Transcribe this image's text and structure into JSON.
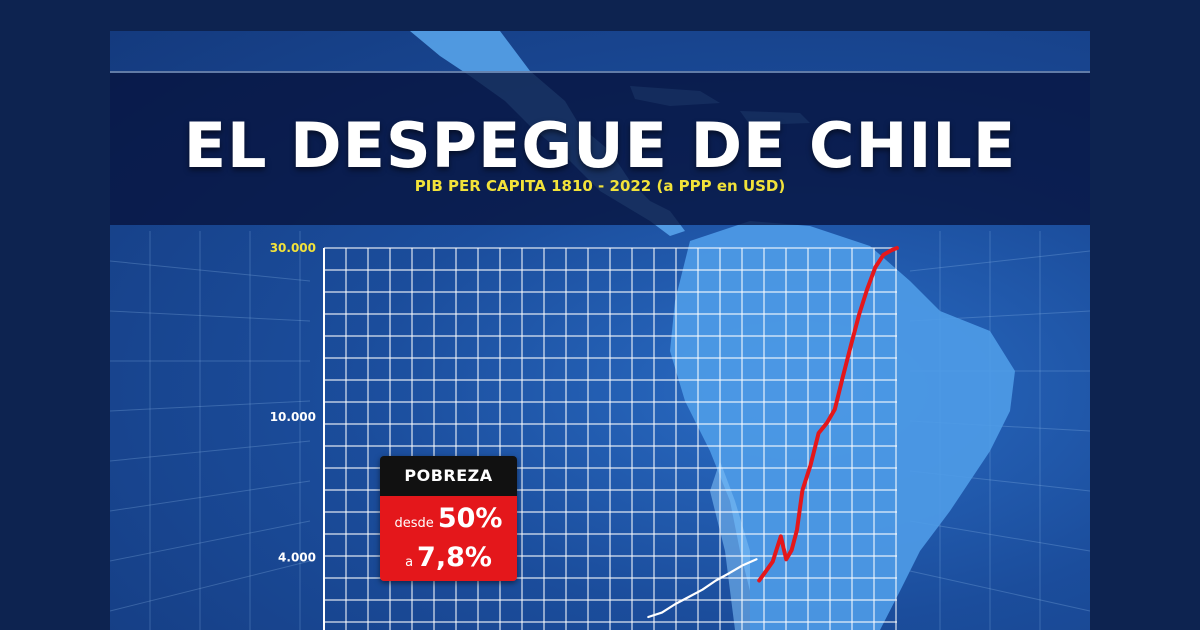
{
  "header": {
    "title": "EL DESPEGUE DE CHILE",
    "subtitle": "PIB  PER CAPITA 1810 - 2022 (a PPP en USD)"
  },
  "poverty_box": {
    "title": "POBREZA",
    "from_prefix": "desde",
    "from_value": "50%",
    "to_prefix": "a",
    "to_value": "7,8%"
  },
  "colors": {
    "page_bg": "#0d2350",
    "title_text": "#ffffff",
    "subtitle_text": "#f2e23a",
    "top_tick_text": "#f2e23a",
    "tick_text": "#ffffff",
    "line_red": "#e4171b",
    "line_white": "#ffffff",
    "grid": "#ffffff",
    "poverty_head": "#111111",
    "poverty_body": "#e4171b"
  },
  "chart_data": {
    "type": "line",
    "title": "EL DESPEGUE DE CHILE",
    "subtitle": "PIB  PER CAPITA 1810 - 2022 (a PPP en USD)",
    "xlabel": "",
    "ylabel": "",
    "yscale": "log",
    "ylim": [
      2500,
      30000
    ],
    "xlim": [
      1810,
      2022
    ],
    "y_ticks": [
      {
        "label": "30.000",
        "value": 30000
      },
      {
        "label": "10.000",
        "value": 10000
      },
      {
        "label": "4.000",
        "value": 4000
      }
    ],
    "grid": true,
    "legend": "none",
    "series": [
      {
        "color": "#ffffff",
        "x": [
          1930,
          1935,
          1940,
          1945,
          1950,
          1955,
          1960,
          1965,
          1970
        ],
        "y": [
          2720,
          2800,
          2960,
          3100,
          3250,
          3450,
          3620,
          3810,
          3960
        ]
      },
      {
        "color": "#e4171b",
        "x": [
          1971,
          1973,
          1976,
          1979,
          1981,
          1983,
          1985,
          1987,
          1990,
          1993,
          1996,
          1999,
          2002,
          2005,
          2008,
          2011,
          2014,
          2017,
          2020,
          2022
        ],
        "y": [
          3450,
          3620,
          3900,
          4600,
          3960,
          4200,
          4800,
          6200,
          7300,
          9000,
          9600,
          10500,
          13000,
          16000,
          19500,
          23000,
          26500,
          28700,
          29600,
          30000
        ]
      }
    ]
  }
}
